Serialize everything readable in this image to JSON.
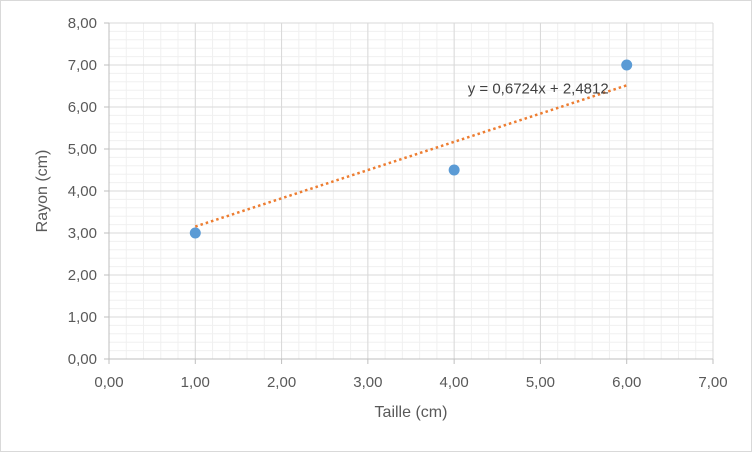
{
  "chart_data": {
    "type": "scatter",
    "title": "",
    "xlabel": "Taille (cm)",
    "ylabel": "Rayon (cm)",
    "xlim": [
      0,
      7
    ],
    "ylim": [
      0,
      8
    ],
    "x_major_step": 1,
    "y_major_step": 1,
    "minor_grid_divisions": 5,
    "grid": true,
    "x_tick_labels": [
      "0,00",
      "1,00",
      "2,00",
      "3,00",
      "4,00",
      "5,00",
      "6,00",
      "7,00"
    ],
    "y_tick_labels": [
      "0,00",
      "1,00",
      "2,00",
      "3,00",
      "4,00",
      "5,00",
      "6,00",
      "7,00",
      "8,00"
    ],
    "series": [
      {
        "x": [
          1,
          4,
          6
        ],
        "y": [
          3,
          4.5,
          7
        ],
        "color": "#5b9bd5"
      }
    ],
    "trendline": {
      "type": "linear",
      "slope": 0.6724,
      "intercept": 2.4812,
      "x_range": [
        1,
        6
      ],
      "color": "#ed7d31",
      "style": "dotted",
      "equation_label": "y = 0,6724x + 2,4812"
    }
  }
}
